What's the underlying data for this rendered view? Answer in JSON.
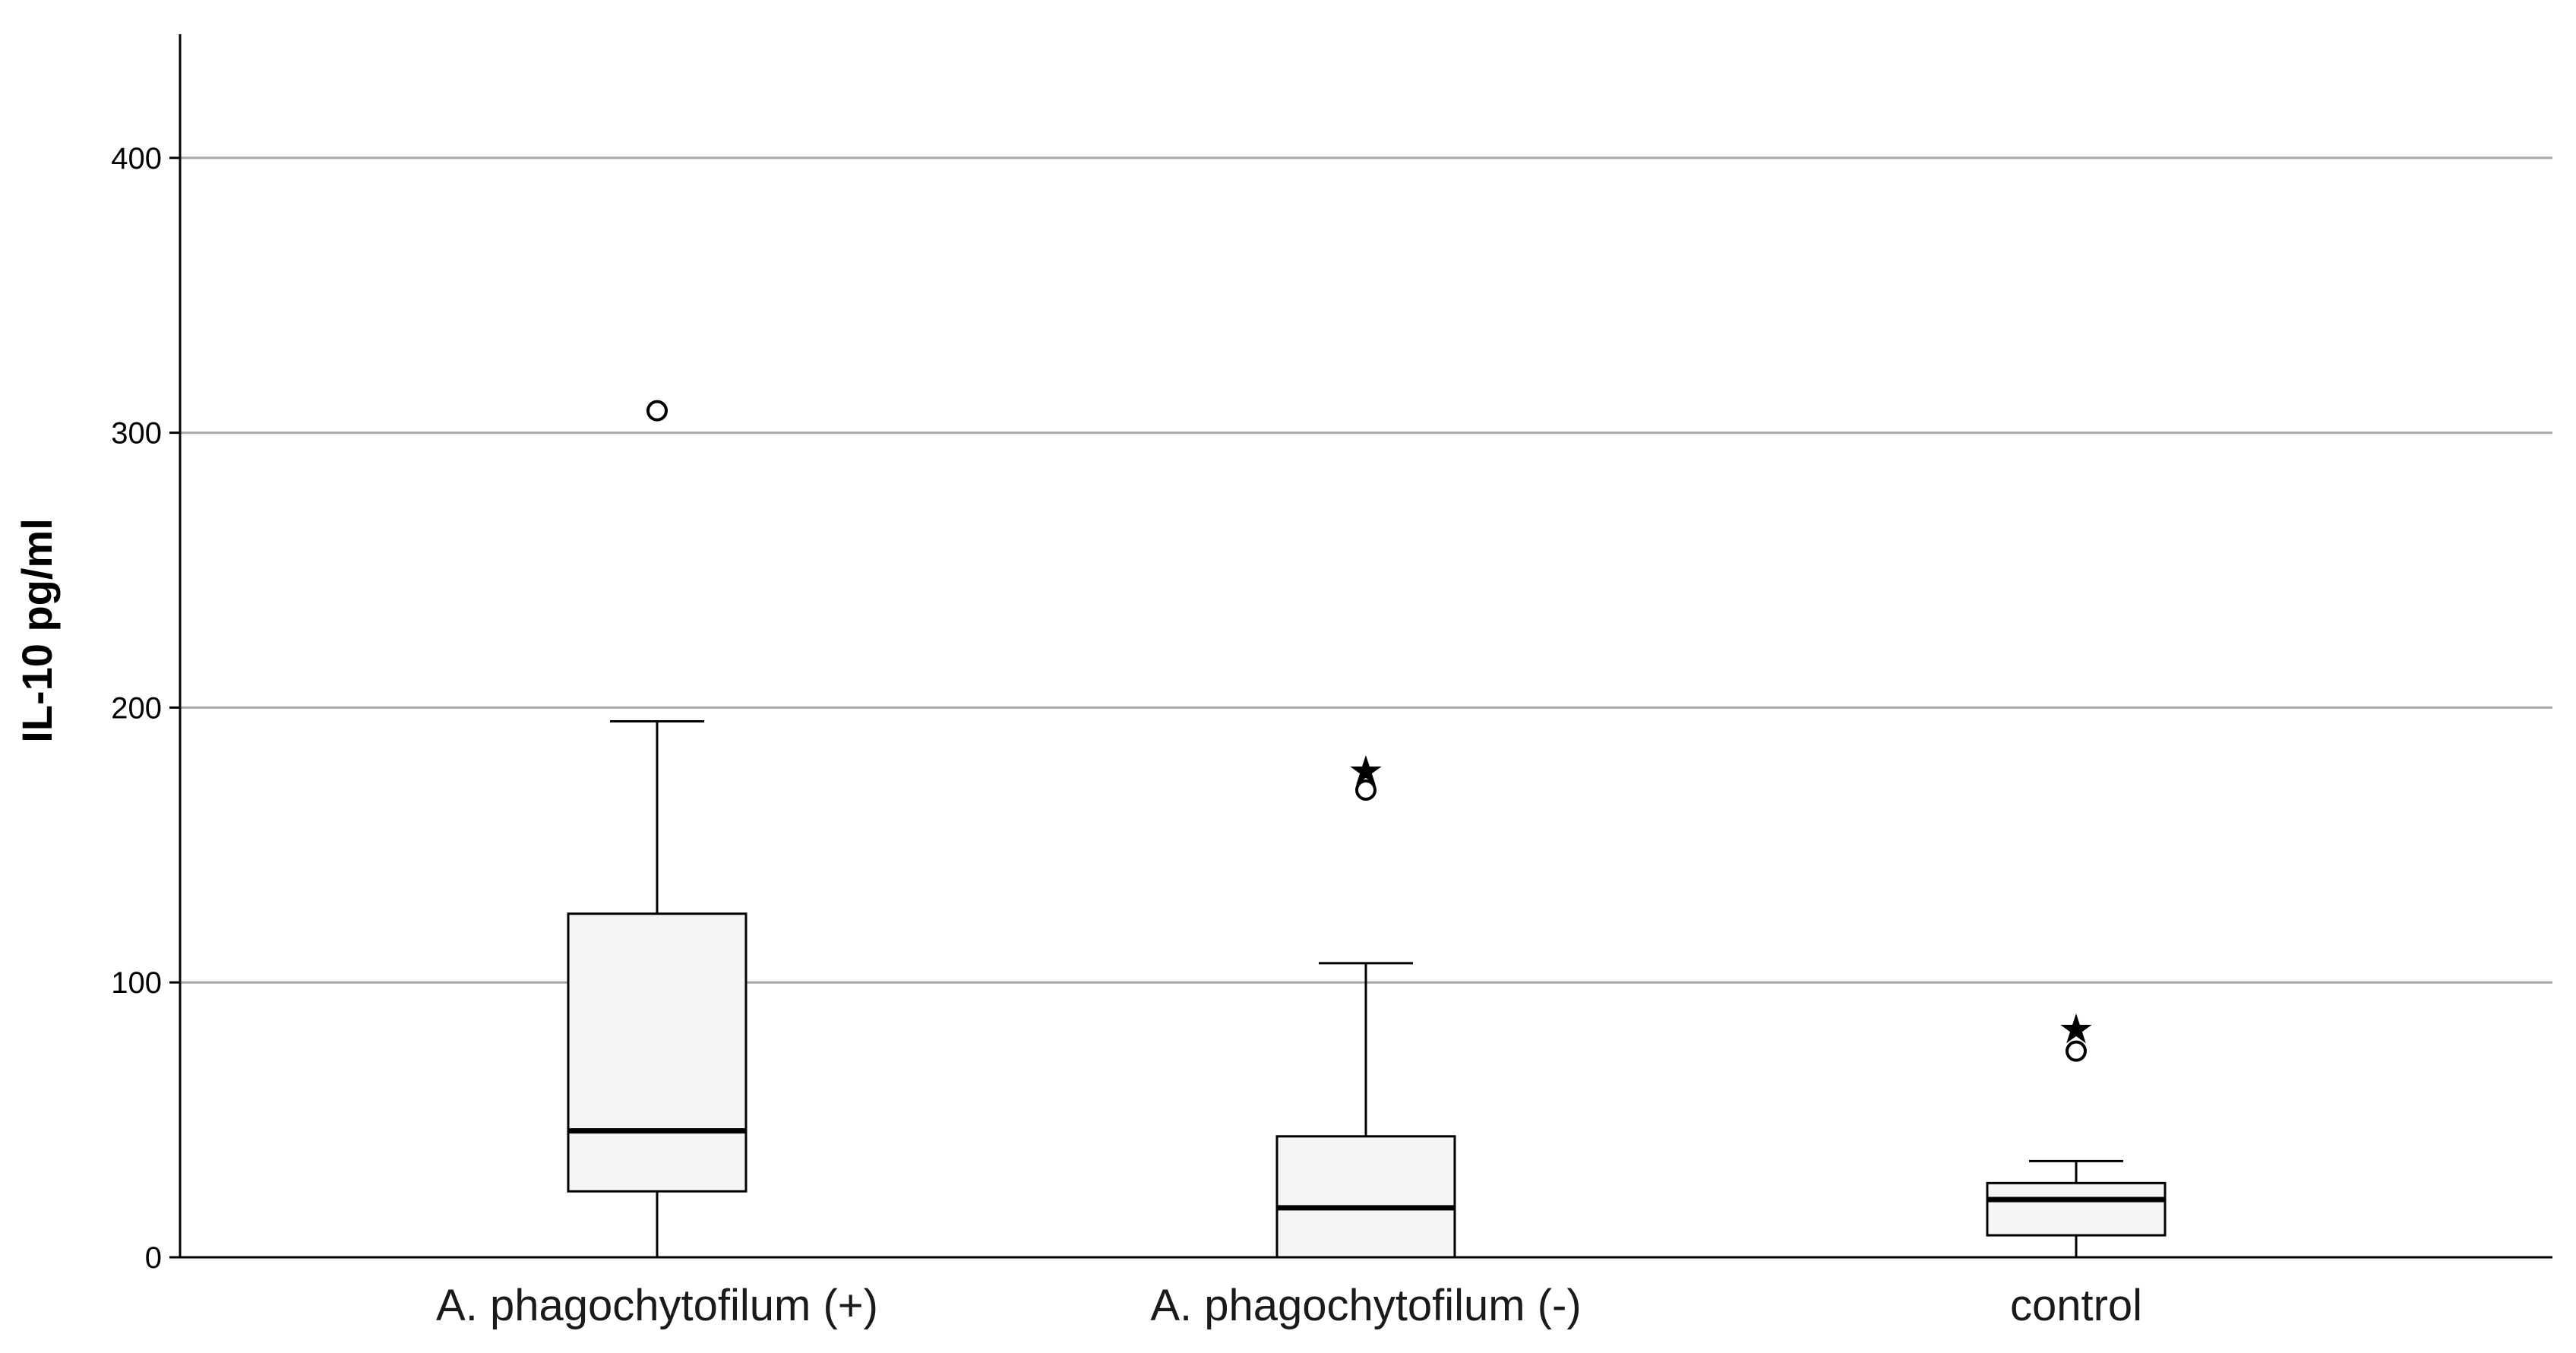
{
  "chart_data": {
    "type": "boxplot",
    "title": "",
    "xlabel": "",
    "ylabel": "IL-10 pg/ml",
    "ylim": [
      0,
      445
    ],
    "yticks": [
      0,
      100,
      200,
      300,
      400
    ],
    "grid": true,
    "categories": [
      "A. phagochytofilum (+)",
      "A. phagochytofilum (-)",
      "control"
    ],
    "boxes": [
      {
        "category": "A. phagochytofilum (+)",
        "whisker_low": 0,
        "q1": 24,
        "median": 46,
        "q3": 125,
        "whisker_high": 195,
        "outliers": [
          {
            "value": 308,
            "marker": "circle"
          }
        ]
      },
      {
        "category": "A. phagochytofilum (-)",
        "whisker_low": 0,
        "q1": 0,
        "median": 18,
        "q3": 44,
        "whisker_high": 107,
        "outliers": [
          {
            "value": 170,
            "marker": "circle"
          },
          {
            "value": 178,
            "marker": "star"
          }
        ]
      },
      {
        "category": "control",
        "whisker_low": 0,
        "q1": 8,
        "median": 21,
        "q3": 27,
        "whisker_high": 35,
        "outliers": [
          {
            "value": 75,
            "marker": "circle"
          },
          {
            "value": 84,
            "marker": "star"
          }
        ]
      }
    ],
    "colors": {
      "box_fill": "#f5f5f5",
      "box_stroke": "#000000",
      "grid": "#a8a8a8",
      "axis": "#000000"
    }
  }
}
